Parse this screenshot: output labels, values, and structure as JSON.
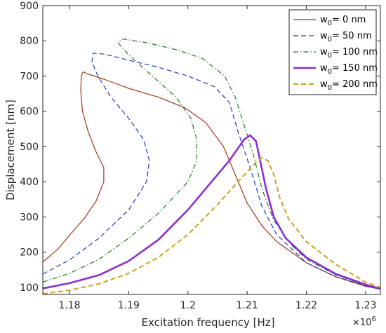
{
  "chart_data": {
    "type": "line",
    "title": "",
    "xlabel": "Excitation frequency [Hz]",
    "ylabel": "Displacement [nm]",
    "x_exponent_label": "×10",
    "x_exponent_power": "6",
    "xlim": [
      1.1755,
      1.2325
    ],
    "ylim": [
      80,
      900
    ],
    "x_ticks": [
      1.18,
      1.19,
      1.2,
      1.21,
      1.22,
      1.23
    ],
    "x_tick_labels": [
      "1.18",
      "1.19",
      "1.2",
      "1.21",
      "1.22",
      "1.23"
    ],
    "y_ticks": [
      100,
      200,
      300,
      400,
      500,
      600,
      700,
      800,
      900
    ],
    "y_tick_labels": [
      "100",
      "200",
      "300",
      "400",
      "500",
      "600",
      "700",
      "800",
      "900"
    ],
    "legend_position": "top-right",
    "series": [
      {
        "name": "w0= 0 nm",
        "legend_main": "w",
        "legend_sub": "0",
        "legend_rest": "= 0 nm",
        "color": "#a2341b",
        "dash": "solid",
        "width": 1.2,
        "points": [
          [
            1.1755,
            172
          ],
          [
            1.178,
            208
          ],
          [
            1.18,
            248
          ],
          [
            1.1825,
            296
          ],
          [
            1.1845,
            345
          ],
          [
            1.1858,
            400
          ],
          [
            1.1858,
            440
          ],
          [
            1.1845,
            485
          ],
          [
            1.1832,
            540
          ],
          [
            1.1822,
            600
          ],
          [
            1.1819,
            660
          ],
          [
            1.182,
            700
          ],
          [
            1.1823,
            712
          ],
          [
            1.1833,
            705
          ],
          [
            1.186,
            690
          ],
          [
            1.19,
            665
          ],
          [
            1.195,
            640
          ],
          [
            1.1995,
            610
          ],
          [
            1.203,
            568
          ],
          [
            1.206,
            500
          ],
          [
            1.208,
            420
          ],
          [
            1.21,
            340
          ],
          [
            1.2125,
            275
          ],
          [
            1.215,
            230
          ],
          [
            1.22,
            170
          ],
          [
            1.225,
            130
          ],
          [
            1.23,
            103
          ],
          [
            1.2325,
            95
          ]
        ]
      },
      {
        "name": "w0= 50 nm",
        "legend_main": "w",
        "legend_sub": "0",
        "legend_rest": "= 50 nm",
        "color": "#2233cc",
        "dash": "dashed",
        "width": 1.2,
        "points": [
          [
            1.1755,
            138
          ],
          [
            1.18,
            178
          ],
          [
            1.185,
            240
          ],
          [
            1.19,
            320
          ],
          [
            1.193,
            400
          ],
          [
            1.1935,
            460
          ],
          [
            1.1925,
            520
          ],
          [
            1.19,
            580
          ],
          [
            1.187,
            640
          ],
          [
            1.1848,
            700
          ],
          [
            1.1838,
            740
          ],
          [
            1.184,
            765
          ],
          [
            1.186,
            762
          ],
          [
            1.19,
            745
          ],
          [
            1.195,
            725
          ],
          [
            1.2,
            700
          ],
          [
            1.2045,
            670
          ],
          [
            1.207,
            625
          ],
          [
            1.2085,
            540
          ],
          [
            1.2105,
            440
          ],
          [
            1.2125,
            330
          ],
          [
            1.215,
            250
          ],
          [
            1.22,
            170
          ],
          [
            1.225,
            130
          ],
          [
            1.23,
            105
          ],
          [
            1.2325,
            95
          ]
        ]
      },
      {
        "name": "w0= 100 nm",
        "legend_main": "w",
        "legend_sub": "0",
        "legend_rest": "= 100 nm",
        "color": "#1f7a1f",
        "dash": "dashdot",
        "width": 1.2,
        "points": [
          [
            1.1755,
            115
          ],
          [
            1.18,
            140
          ],
          [
            1.185,
            180
          ],
          [
            1.19,
            240
          ],
          [
            1.195,
            310
          ],
          [
            1.2,
            400
          ],
          [
            1.2015,
            460
          ],
          [
            1.2015,
            520
          ],
          [
            1.2005,
            580
          ],
          [
            1.198,
            640
          ],
          [
            1.194,
            700
          ],
          [
            1.19,
            760
          ],
          [
            1.1882,
            795
          ],
          [
            1.189,
            805
          ],
          [
            1.193,
            795
          ],
          [
            1.198,
            775
          ],
          [
            1.2025,
            750
          ],
          [
            1.2062,
            700
          ],
          [
            1.208,
            640
          ],
          [
            1.2095,
            560
          ],
          [
            1.211,
            480
          ],
          [
            1.2125,
            380
          ],
          [
            1.2145,
            290
          ],
          [
            1.2175,
            220
          ],
          [
            1.22,
            180
          ],
          [
            1.225,
            135
          ],
          [
            1.23,
            106
          ],
          [
            1.2325,
            96
          ]
        ]
      },
      {
        "name": "w0= 150 nm",
        "legend_main": "w",
        "legend_sub": "0",
        "legend_rest": "= 150 nm",
        "color": "#8b2fd0",
        "dash": "solid",
        "width": 2.6,
        "points": [
          [
            1.1755,
            97
          ],
          [
            1.18,
            112
          ],
          [
            1.185,
            135
          ],
          [
            1.19,
            175
          ],
          [
            1.195,
            235
          ],
          [
            1.2,
            320
          ],
          [
            1.204,
            400
          ],
          [
            1.207,
            460
          ],
          [
            1.2095,
            520
          ],
          [
            1.2105,
            532
          ],
          [
            1.2115,
            515
          ],
          [
            1.2122,
            460
          ],
          [
            1.2132,
            380
          ],
          [
            1.2145,
            300
          ],
          [
            1.2165,
            240
          ],
          [
            1.22,
            185
          ],
          [
            1.225,
            138
          ],
          [
            1.23,
            108
          ],
          [
            1.2325,
            96
          ]
        ]
      },
      {
        "name": "w0= 200 nm",
        "legend_main": "w",
        "legend_sub": "0",
        "legend_rest": "= 200 nm",
        "color": "#d4a017",
        "dash": "dashed",
        "width": 2.0,
        "points": [
          [
            1.1755,
            82
          ],
          [
            1.18,
            92
          ],
          [
            1.185,
            110
          ],
          [
            1.19,
            140
          ],
          [
            1.195,
            185
          ],
          [
            1.2,
            250
          ],
          [
            1.205,
            335
          ],
          [
            1.209,
            410
          ],
          [
            1.2115,
            455
          ],
          [
            1.2125,
            468
          ],
          [
            1.2135,
            460
          ],
          [
            1.2145,
            420
          ],
          [
            1.2155,
            355
          ],
          [
            1.217,
            295
          ],
          [
            1.22,
            230
          ],
          [
            1.225,
            165
          ],
          [
            1.23,
            115
          ],
          [
            1.2325,
            100
          ]
        ]
      }
    ]
  }
}
